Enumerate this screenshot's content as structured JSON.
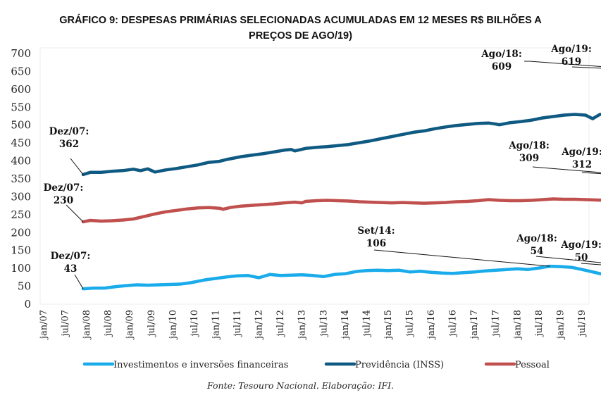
{
  "chart_data": {
    "type": "line",
    "title": "GRÁFICO 9: DESPESAS PRIMÁRIAS SELECIONADAS ACUMULADAS EM 12 MESES R$ BILHÕES A PREÇOS DE AGO/19)",
    "title_lines": [
      "GRÁFICO 9: DESPESAS PRIMÁRIAS SELECIONADAS ACUMULADAS EM 12 MESES R$ BILHÕES A",
      "PREÇOS DE AGO/19)"
    ],
    "xlabel": "",
    "ylabel": "",
    "ylim": [
      0,
      700
    ],
    "yticks": [
      0,
      50,
      100,
      150,
      200,
      250,
      300,
      350,
      400,
      450,
      500,
      550,
      600,
      650,
      700
    ],
    "x_start": "jan/07",
    "x_end": "ago/19",
    "xticks": [
      "jan/07",
      "jul/07",
      "jan/08",
      "jul/08",
      "jan/09",
      "jul/09",
      "jan/10",
      "jul/10",
      "jan/11",
      "jul/11",
      "jan/12",
      "jul/12",
      "jan/13",
      "jul/13",
      "jan/14",
      "jul/14",
      "jan/15",
      "jul/15",
      "jan/16",
      "jul/16",
      "jan/17",
      "jul/17",
      "jan/18",
      "jul/18",
      "jan/19",
      "jul/19"
    ],
    "grid": false,
    "legend_position": "bottom",
    "series": [
      {
        "name": "Investimentos e inversões financeiras",
        "color": "#1aabeb",
        "x_months_from_jan07": [
          11,
          14,
          17,
          20,
          23,
          26,
          29,
          32,
          35,
          38,
          41,
          44,
          45,
          48,
          51,
          54,
          57,
          60,
          63,
          65,
          66,
          69,
          72,
          75,
          78,
          81,
          84,
          87,
          90,
          93,
          96,
          99,
          102,
          105,
          108,
          111,
          114,
          117,
          120,
          123,
          126,
          129,
          132,
          135,
          138,
          141,
          144,
          147,
          150,
          153,
          156,
          159,
          162,
          165,
          168,
          171,
          174,
          177,
          180,
          183,
          186,
          188,
          189,
          192,
          195,
          198,
          201,
          204,
          207,
          210,
          213,
          216,
          219,
          222,
          225,
          228,
          231,
          234,
          236,
          239,
          240
        ],
        "values": [
          43,
          45,
          45,
          49,
          52,
          54,
          53,
          54,
          55,
          56,
          60,
          66,
          68,
          72,
          76,
          79,
          80,
          74,
          83,
          81,
          80,
          81,
          82,
          80,
          77,
          83,
          85,
          91,
          94,
          95,
          94,
          95,
          90,
          92,
          89,
          87,
          86,
          88,
          90,
          93,
          95,
          97,
          99,
          97,
          101,
          106,
          105,
          103,
          97,
          90,
          83,
          75,
          68,
          66,
          67,
          65,
          64,
          60,
          58,
          61,
          70,
          71,
          65,
          62,
          60,
          58,
          59,
          55,
          51,
          50,
          51,
          53,
          54,
          54,
          56,
          55,
          55,
          53,
          52,
          51,
          50
        ]
      },
      {
        "name": "Previdência (INSS)",
        "color": "#0f5a82",
        "x_months_from_jan07": [
          11,
          13,
          16,
          19,
          22,
          25,
          27,
          29,
          31,
          34,
          37,
          40,
          43,
          46,
          49,
          51,
          52,
          55,
          58,
          61,
          64,
          67,
          69,
          70,
          73,
          76,
          79,
          82,
          85,
          88,
          91,
          94,
          97,
          100,
          103,
          106,
          109,
          112,
          115,
          118,
          121,
          124,
          126,
          127,
          130,
          133,
          136,
          139,
          142,
          145,
          148,
          151,
          153,
          155,
          157,
          160,
          163,
          166,
          169,
          172,
          174,
          176,
          178,
          181,
          184,
          187,
          190,
          193,
          196,
          199,
          202,
          205,
          208,
          211,
          214,
          217,
          220,
          223,
          226,
          229,
          232,
          235,
          238,
          240
        ],
        "values": [
          362,
          368,
          368,
          371,
          373,
          377,
          373,
          378,
          369,
          375,
          379,
          384,
          389,
          396,
          399,
          404,
          406,
          412,
          416,
          420,
          425,
          430,
          432,
          428,
          435,
          438,
          440,
          443,
          446,
          451,
          456,
          462,
          468,
          474,
          480,
          484,
          490,
          495,
          499,
          502,
          505,
          506,
          503,
          501,
          507,
          510,
          514,
          520,
          524,
          528,
          530,
          528,
          518,
          530,
          532,
          534,
          540,
          545,
          552,
          567,
          558,
          563,
          570,
          576,
          582,
          587,
          594,
          599,
          603,
          609,
          612,
          610,
          609,
          610,
          611,
          611,
          612,
          613,
          614,
          615,
          616,
          617,
          618,
          619
        ]
      },
      {
        "name": "Pessoal",
        "color": "#c0504d",
        "x_months_from_jan07": [
          11,
          13,
          16,
          19,
          22,
          25,
          28,
          31,
          34,
          37,
          40,
          43,
          46,
          49,
          50,
          52,
          55,
          58,
          61,
          64,
          67,
          70,
          72,
          73,
          76,
          79,
          82,
          85,
          88,
          91,
          94,
          97,
          100,
          103,
          106,
          109,
          112,
          115,
          118,
          121,
          124,
          127,
          130,
          133,
          136,
          139,
          142,
          145,
          148,
          151,
          154,
          157,
          160,
          163,
          166,
          169,
          172,
          175,
          178,
          181,
          184,
          187,
          190,
          193,
          196,
          199,
          201,
          204,
          207,
          210,
          213,
          216,
          219,
          222,
          225,
          228,
          231,
          234,
          237,
          240
        ],
        "values": [
          230,
          234,
          232,
          233,
          235,
          238,
          245,
          252,
          258,
          262,
          266,
          269,
          270,
          268,
          265,
          270,
          274,
          276,
          278,
          280,
          283,
          285,
          283,
          287,
          289,
          290,
          289,
          288,
          286,
          285,
          284,
          283,
          284,
          283,
          282,
          283,
          284,
          286,
          287,
          289,
          292,
          290,
          289,
          289,
          290,
          292,
          294,
          293,
          293,
          292,
          291,
          290,
          289,
          288,
          287,
          285,
          286,
          288,
          291,
          294,
          300,
          304,
          308,
          310,
          307,
          311,
          313,
          309,
          308,
          309,
          310,
          310,
          311,
          311,
          311,
          312,
          312,
          312,
          312,
          312
        ]
      }
    ],
    "annotations": [
      {
        "series": "Previdência (INSS)",
        "label": "Dez/07:",
        "value": "362",
        "month_index": 11
      },
      {
        "series": "Previdência (INSS)",
        "label": "Ago/18:",
        "value": "609",
        "month_index": 223
      },
      {
        "series": "Previdência (INSS)",
        "label": "Ago/19:",
        "value": "619",
        "month_index": 240
      },
      {
        "series": "Pessoal",
        "label": "Dez/07:",
        "value": "230",
        "month_index": 11
      },
      {
        "series": "Pessoal",
        "label": "Ago/18:",
        "value": "309",
        "month_index": 223
      },
      {
        "series": "Pessoal",
        "label": "Ago/19:",
        "value": "312",
        "month_index": 240
      },
      {
        "series": "Investimentos e inversões financeiras",
        "label": "Dez/07:",
        "value": "43",
        "month_index": 11
      },
      {
        "series": "Investimentos e inversões financeiras",
        "label": "Set/14:",
        "value": "106",
        "month_index": 141
      },
      {
        "series": "Investimentos e inversões financeiras",
        "label": "Ago/18:",
        "value": "54",
        "month_index": 223
      },
      {
        "series": "Investimentos e inversões financeiras",
        "label": "Ago/19:",
        "value": "50",
        "month_index": 240
      }
    ]
  },
  "source_note": "Fonte: Tesouro Nacional. Elaboração: IFI."
}
